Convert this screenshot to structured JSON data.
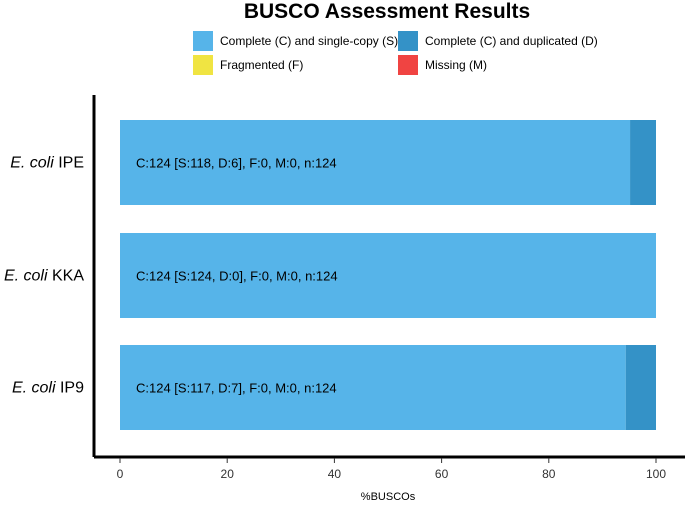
{
  "chart_data": {
    "type": "bar",
    "orientation": "horizontal",
    "stacked": true,
    "title": "BUSCO Assessment Results",
    "xlabel": "%BUSCOs",
    "ylabel": "",
    "xlim": [
      0,
      100
    ],
    "x_ticks": [
      "0",
      "20",
      "40",
      "60",
      "80",
      "100"
    ],
    "legend_position": "top",
    "legend": [
      {
        "label": "Complete (C) and single-copy (S)",
        "color": "#56B4E9"
      },
      {
        "label": "Complete (C) and duplicated (D)",
        "color": "#3492C7"
      },
      {
        "label": "Fragmented (F)",
        "color": "#F0E442"
      },
      {
        "label": "Missing (M)",
        "color": "#F04442"
      }
    ],
    "categories": [
      {
        "species": "E. coli",
        "strain": "IPE"
      },
      {
        "species": "E. coli",
        "strain": "KKA"
      },
      {
        "species": "E. coli",
        "strain": "IP9"
      }
    ],
    "series": [
      {
        "name": "Complete (C) and single-copy (S)",
        "color": "#56B4E9",
        "values": [
          95.16,
          100,
          94.35
        ]
      },
      {
        "name": "Complete (C) and duplicated (D)",
        "color": "#3492C7",
        "values": [
          4.84,
          0,
          5.65
        ]
      },
      {
        "name": "Fragmented (F)",
        "color": "#F0E442",
        "values": [
          0,
          0,
          0
        ]
      },
      {
        "name": "Missing (M)",
        "color": "#F04442",
        "values": [
          0,
          0,
          0
        ]
      }
    ],
    "bar_labels": [
      "C:124 [S:118, D:6], F:0, M:0, n:124",
      "C:124 [S:124, D:0], F:0, M:0, n:124",
      "C:124 [S:117, D:7], F:0, M:0, n:124"
    ],
    "grid": false
  }
}
